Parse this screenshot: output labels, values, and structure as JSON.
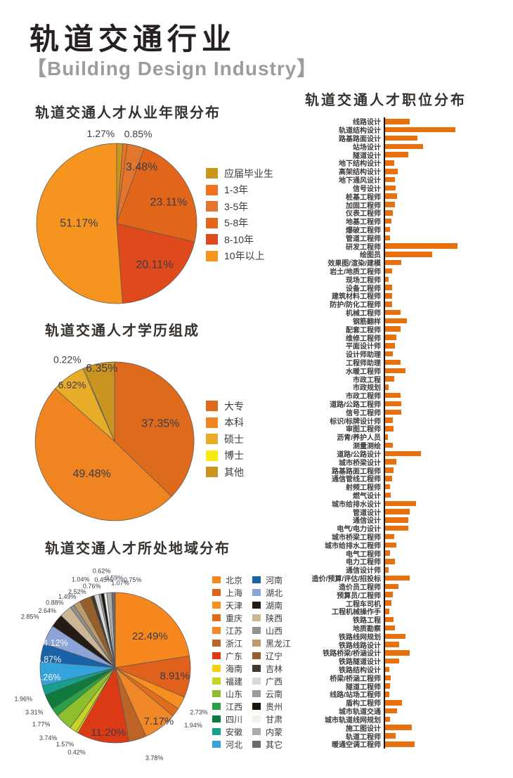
{
  "page": {
    "title": "轨道交通行业",
    "subtitle": "【Building Design Industry】",
    "accent_color": "#E8710E",
    "text_color": "#3B3B4B"
  },
  "chart_data": [
    {
      "id": "experience",
      "type": "pie",
      "title": "轨道交通人才从业年限分布",
      "legend_position": "right",
      "slices": [
        {
          "name": "应届毕业生",
          "pct": "1.27%",
          "value": 1.27,
          "color": "#C9971B",
          "inside": false,
          "la": 350,
          "lr": 1.14
        },
        {
          "name": "1-3年",
          "pct": "0.85%",
          "value": 0.85,
          "color": "#EE7220",
          "inside": false,
          "la": 13.5,
          "lr": 1.15
        },
        {
          "name": "3-5年",
          "pct": "3.48%",
          "value": 3.48,
          "color": "#E2762E",
          "inside": true,
          "la": 24,
          "lr": 0.77
        },
        {
          "name": "5-8年",
          "pct": "23.11%",
          "value": 23.11,
          "color": "#E2661A",
          "inside": true,
          "la": 68,
          "lr": 0.7
        },
        {
          "name": "8-10年",
          "pct": "20.11%",
          "value": 20.11,
          "color": "#DF4A1C",
          "inside": true,
          "la": 137.5,
          "lr": 0.7
        },
        {
          "name": "10年以上",
          "pct": "51.17%",
          "value": 51.17,
          "color": "#F5941F",
          "inside": true,
          "la": 270,
          "lr": 0.47
        }
      ]
    },
    {
      "id": "education",
      "type": "pie",
      "title": "轨道交通人才学历组成",
      "legend_position": "right",
      "slices": [
        {
          "name": "大专",
          "pct": "37.35%",
          "value": 37.35,
          "color": "#DE6A1C",
          "inside": true,
          "la": 69,
          "lr": 0.62
        },
        {
          "name": "本科",
          "pct": "49.48%",
          "value": 49.48,
          "color": "#F08420",
          "inside": true,
          "la": 215,
          "lr": 0.5
        },
        {
          "name": "硕士",
          "pct": "6.92%",
          "value": 6.92,
          "color": "#E8AD28",
          "inside": false,
          "la": 323,
          "lr": 0.89
        },
        {
          "name": "博士",
          "pct": "0.22%",
          "value": 0.22,
          "color": "#FBEA0F",
          "inside": false,
          "la": 330,
          "lr": 1.19
        },
        {
          "name": "其他",
          "pct": "6.35%",
          "value": 6.35,
          "color": "#C9941F",
          "inside": true,
          "la": 350,
          "lr": 0.93
        }
      ]
    },
    {
      "id": "region",
      "type": "pie",
      "title": "轨道交通人才所处地域分布",
      "legend_position": "right-two-columns",
      "slices": [
        {
          "name": "北京",
          "pct": "22.49%",
          "value": 22.49,
          "color": "#F5871E",
          "inside": true,
          "la": 48,
          "lr": 0.62
        },
        {
          "name": "上海",
          "pct": "8.91%",
          "value": 8.91,
          "color": "#E0611C",
          "inside": true,
          "la": 98,
          "lr": 0.8
        },
        {
          "name": "天津",
          "pct": "2.73%",
          "value": 2.73,
          "color": "#F78E1E",
          "inside": false,
          "la": 118,
          "lr": 1.26
        },
        {
          "name": "重庆",
          "pct": "1.94%",
          "value": 1.94,
          "color": "#E06C1C",
          "inside": false,
          "la": 126.5,
          "lr": 1.29
        },
        {
          "name": "江苏",
          "pct": "7.17%",
          "value": 7.17,
          "color": "#F08828",
          "inside": true,
          "la": 141,
          "lr": 0.92
        },
        {
          "name": "浙江",
          "pct": "3.78%",
          "value": 3.78,
          "color": "#BC6426",
          "inside": false,
          "la": 156.6,
          "lr": 1.31
        },
        {
          "name": "广东",
          "pct": "11.20%",
          "value": 11.2,
          "color": "#DC3A14",
          "inside": true,
          "la": 186,
          "lr": 0.87
        },
        {
          "name": "海南",
          "pct": "0.42%",
          "value": 0.42,
          "color": "#F2D112",
          "inside": false,
          "la": 204.5,
          "lr": 1.24
        },
        {
          "name": "福建",
          "pct": "1.57%",
          "value": 1.57,
          "color": "#C5D426",
          "inside": false,
          "la": 213.2,
          "lr": 1.22
        },
        {
          "name": "山东",
          "pct": "3.74%",
          "value": 3.74,
          "color": "#8DBE2C",
          "inside": false,
          "la": 223.7,
          "lr": 1.29
        },
        {
          "name": "江西",
          "pct": "1.77%",
          "value": 1.77,
          "color": "#2BA147",
          "inside": false,
          "la": 232.6,
          "lr": 1.24
        },
        {
          "name": "四川",
          "pct": "3.31%",
          "value": 3.31,
          "color": "#0F7A3C",
          "inside": false,
          "la": 241.1,
          "lr": 1.23
        },
        {
          "name": "安徽",
          "pct": "1.96%",
          "value": 1.96,
          "color": "#14A08C",
          "inside": false,
          "la": 251.3,
          "lr": 1.29
        },
        {
          "name": "河北",
          "pct": "5.26%",
          "value": 5.26,
          "color": "#35A2DC",
          "inside": true,
          "la": 261.7,
          "lr": 0.9,
          "light": true
        },
        {
          "name": "河南",
          "pct": "3.87%",
          "value": 3.87,
          "color": "#1A62A8",
          "inside": true,
          "la": 277,
          "lr": 0.89,
          "light": true
        },
        {
          "name": "湖北",
          "pct": "4.12%",
          "value": 4.12,
          "color": "#8CA4D8",
          "inside": true,
          "la": 292.5,
          "lr": 0.86,
          "light": true
        },
        {
          "name": "湖南",
          "pct": "2.85%",
          "value": 2.85,
          "color": "#241C14",
          "inside": false,
          "la": 300.8,
          "lr": 1.32
        },
        {
          "name": "陕西",
          "pct": "2.64%",
          "value": 2.64,
          "color": "#CBB795",
          "inside": false,
          "la": 310,
          "lr": 1.18
        },
        {
          "name": "山西",
          "pct": "0.88%",
          "value": 0.88,
          "color": "#919191",
          "inside": false,
          "la": 317,
          "lr": 1.18
        },
        {
          "name": "黑龙江",
          "pct": "1.49%",
          "value": 1.49,
          "color": "#BD9A6A",
          "inside": false,
          "la": 326,
          "lr": 1.14
        },
        {
          "name": "辽宁",
          "pct": "2.52%",
          "value": 2.52,
          "color": "#955F2B",
          "inside": false,
          "la": 333.4,
          "lr": 1.13
        },
        {
          "name": "吉林",
          "pct": "0.76%",
          "value": 0.76,
          "color": "#41382F",
          "inside": false,
          "la": 344,
          "lr": 1.13
        },
        {
          "name": "广西",
          "pct": "1.04%",
          "value": 1.04,
          "color": "#D9D9D9",
          "inside": false,
          "la": 338.6,
          "lr": 1.26
        },
        {
          "name": "云南",
          "pct": "0.45%",
          "value": 0.45,
          "color": "#9B9B9B",
          "inside": false,
          "la": 352.3,
          "lr": 1.18
        },
        {
          "name": "贵州",
          "pct": "0.62%",
          "value": 0.62,
          "color": "#1B140C",
          "inside": false,
          "la": 352,
          "lr": 1.3
        },
        {
          "name": "甘肃",
          "pct": "0.59%",
          "value": 0.59,
          "color": "#F2F1EA",
          "inside": false,
          "la": 359.4,
          "lr": 1.19
        },
        {
          "name": "内蒙",
          "pct": "1.07%",
          "value": 1.07,
          "color": "#ABABAB",
          "inside": false,
          "la": 3.3,
          "lr": 1.13
        },
        {
          "name": "其它",
          "pct": "0.75%",
          "value": 0.75,
          "color": "#6B6B6B",
          "inside": false,
          "la": 11.2,
          "lr": 1.19
        }
      ]
    },
    {
      "id": "positions",
      "type": "bar",
      "title": "轨道交通人才职位分布",
      "orientation": "horizontal",
      "bar_color": "#E8710E",
      "note": "no numeric axis shown; values are relative bar lengths in px",
      "categories": [
        "线路设计",
        "轨道结构设计",
        "路基路面设计",
        "站场设计",
        "隧道设计",
        "地下结构设计",
        "高架结构设计",
        "地下通风设计",
        "信号设计",
        "桩基工程师",
        "加固工程师",
        "仪表工程师",
        "地基工程师",
        "爆破工程师",
        "管道工程师",
        "研发工程师",
        "绘图员",
        "效果图/渲染/建模",
        "岩土/地质工程师",
        "现场工程师",
        "设备工程师",
        "建筑材料工程师",
        "防护/防化工程师",
        "机械工程师",
        "钢筋翻样",
        "配套工程师",
        "维修工程师",
        "平面设计师",
        "设计师助理",
        "工程师助理",
        "水暖工程师",
        "市政工程",
        "市政规划",
        "市政工程师",
        "道路/公路工程师",
        "信号工程师",
        "标识/标牌设计师",
        "审图工程师",
        "沥青/养护人员",
        "测量测绘",
        "道路/公路设计",
        "城市桥梁设计",
        "路基路面工程师",
        "通信管线工程师",
        "射频工程师",
        "燃气设计",
        "城市给排水设计",
        "管道设计",
        "通信设计",
        "电气/电力设计",
        "城市桥梁工程师",
        "城市给排水工程师",
        "电气工程师",
        "电力工程师",
        "通信设计师",
        "造价/预算/评估/招投标",
        "造价员工程师",
        "预算员/工程师",
        "工程车司机",
        "工程机械操作手",
        "铁路工程",
        "地质勘察",
        "铁路线网规划",
        "铁路线路设计",
        "铁路桥梁/桥涵设计",
        "铁路隧道设计",
        "铁路结构设计",
        "桥梁/桥涵工程师",
        "隧道工程师",
        "线路/站场工程师",
        "盾构工程师",
        "城市轨道交通",
        "城市轨道线网规划",
        "施工图设计",
        "轨道工程师",
        "暖通空调工程师"
      ],
      "values": [
        35,
        100,
        46,
        54,
        33,
        13,
        18,
        14,
        15,
        17,
        13.5,
        11,
        8.5,
        7,
        7,
        103,
        67,
        23,
        9.5,
        5,
        9.5,
        9.5,
        9.5,
        22,
        31,
        22,
        16,
        14,
        11,
        22,
        29,
        13,
        5,
        22,
        23,
        23,
        10.5,
        12,
        4,
        11,
        51,
        16,
        12,
        9.5,
        7,
        7.5,
        44,
        34.5,
        32.5,
        33,
        13,
        15.5,
        7,
        13.5,
        4.5,
        35,
        18.5,
        11,
        8.5,
        5.5,
        11.5,
        14,
        29,
        20,
        34.5,
        20,
        6,
        8,
        6.5,
        5.5,
        24,
        16.5,
        7,
        38,
        14.5,
        42
      ]
    }
  ]
}
